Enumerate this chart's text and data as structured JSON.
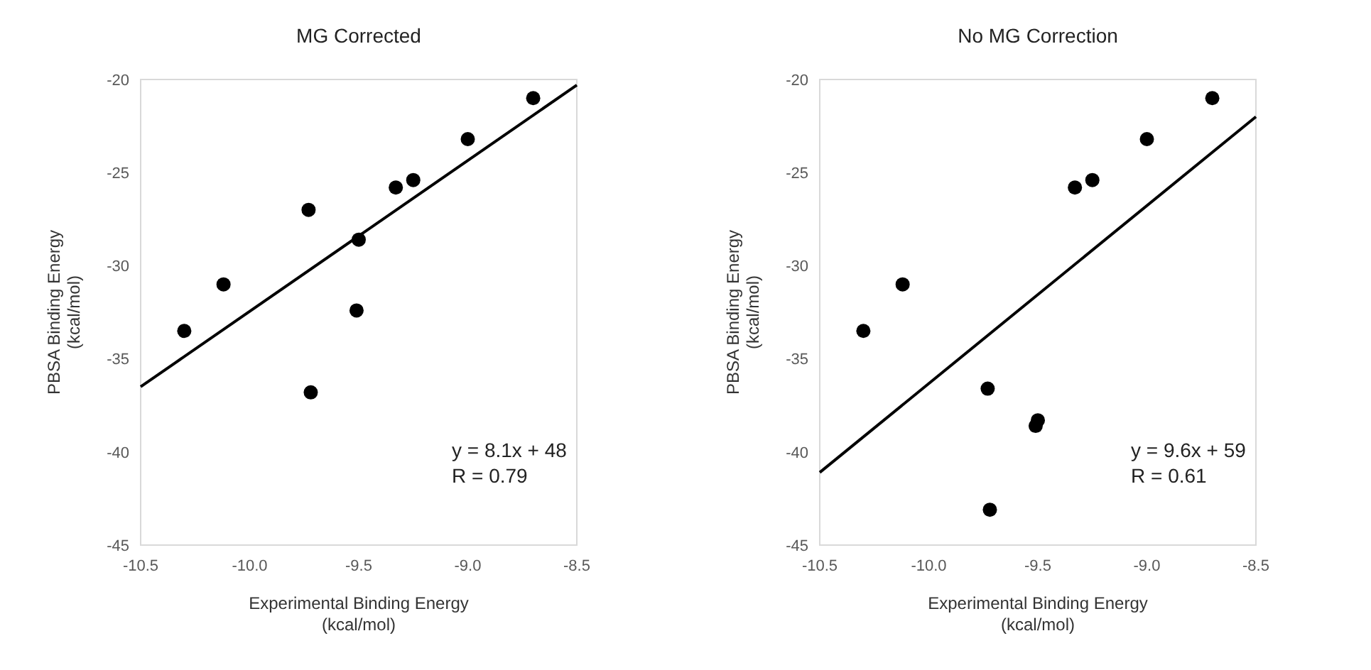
{
  "chart_data": [
    {
      "type": "scatter",
      "title": "MG Corrected",
      "xlabel": "Experimental Binding Energy\n(kcal/mol)",
      "ylabel": "PBSA Binding Energy\n(kcal/mol)",
      "xlim": [
        -10.5,
        -8.5
      ],
      "xticks": [
        {
          "value": -10.5,
          "label": "-10.5"
        },
        {
          "value": -10,
          "label": "-10.0"
        },
        {
          "value": -9.5,
          "label": "-9.5"
        },
        {
          "value": -9,
          "label": "-9.0"
        },
        {
          "value": -8.5,
          "label": "-8.5"
        }
      ],
      "ylim": [
        -45,
        -20
      ],
      "yticks": [
        -45,
        -40,
        -35,
        -30,
        -25,
        -20
      ],
      "annotations": [
        "y = 8.1x + 48\nR = 0.79"
      ],
      "series": [
        {
          "color": "#000000",
          "marker": "circle",
          "x": [
            -10.3,
            -10.12,
            -9.73,
            -9.72,
            -9.5,
            -9.51,
            -9.33,
            -9.25,
            -9.0,
            -8.7
          ],
          "values": [
            -33.5,
            -31,
            -27,
            -36.8,
            -28.6,
            -32.4,
            -25.8,
            -25.4,
            -23.2,
            -21
          ]
        },
        {
          "type": "line",
          "color": "#000000",
          "x": [
            -10.5,
            -8.5
          ],
          "values": [
            -36.5,
            -20.3
          ]
        }
      ]
    },
    {
      "type": "scatter",
      "title": "No MG Correction",
      "xlabel": "Experimental Binding Energy\n(kcal/mol)",
      "ylabel": "PBSA Binding Energy\n(kcal/mol)",
      "xlim": [
        -10.5,
        -8.5
      ],
      "xticks": [
        {
          "value": -10.5,
          "label": "-10.5"
        },
        {
          "value": -10,
          "label": "-10.0"
        },
        {
          "value": -9.5,
          "label": "-9.5"
        },
        {
          "value": -9,
          "label": "-9.0"
        },
        {
          "value": -8.5,
          "label": "-8.5"
        }
      ],
      "ylim": [
        -45,
        -20
      ],
      "yticks": [
        -45,
        -40,
        -35,
        -30,
        -25,
        -20
      ],
      "annotations": [
        "y = 9.6x + 59\nR = 0.61"
      ],
      "series": [
        {
          "color": "#000000",
          "marker": "circle",
          "x": [
            -10.3,
            -10.12,
            -9.73,
            -9.72,
            -9.51,
            -9.5,
            -9.33,
            -9.25,
            -9.0,
            -8.7
          ],
          "values": [
            -33.5,
            -31,
            -36.6,
            -43.1,
            -38.6,
            -38.3,
            -25.8,
            -25.4,
            -23.2,
            -21
          ]
        },
        {
          "type": "line",
          "color": "#000000",
          "x": [
            -10.5,
            -8.5
          ],
          "values": [
            -41.1,
            -22
          ]
        }
      ]
    }
  ]
}
